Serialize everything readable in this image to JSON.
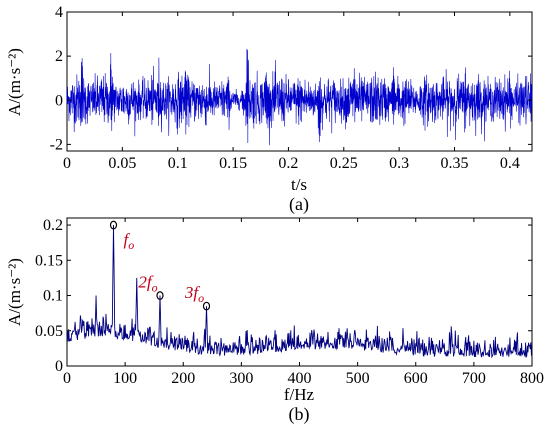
{
  "chart_data": [
    {
      "type": "line",
      "caption": "(a)",
      "xlabel": "t/s",
      "ylabel": "A/(m·s⁻²)",
      "xlim": [
        0,
        0.42
      ],
      "ylim": [
        -2.3,
        4
      ],
      "xticks": [
        "0",
        "0.05",
        "0.1",
        "0.15",
        "0.2",
        "0.25",
        "0.3",
        "0.35",
        "0.4"
      ],
      "xtick_values": [
        0,
        0.05,
        0.1,
        0.15,
        0.2,
        0.25,
        0.3,
        0.35,
        0.4
      ],
      "yticks": [
        "-2",
        "0",
        "2",
        "4"
      ],
      "ytick_values": [
        -2,
        0,
        2,
        4
      ],
      "color": "#0000cc",
      "grid": false,
      "series_description": "vibration signal oscillating roughly between -2.3 and 2.8, largest positive peak about 2.8 near t = 0.163 s",
      "peaks": [
        {
          "x": 0.013,
          "y": 1.9
        },
        {
          "x": 0.04,
          "y": 1.8
        },
        {
          "x": 0.083,
          "y": 1.1
        },
        {
          "x": 0.107,
          "y": 1.5
        },
        {
          "x": 0.163,
          "y": 2.8
        },
        {
          "x": 0.18,
          "y": 1.4
        },
        {
          "x": 0.228,
          "y": -2.2
        },
        {
          "x": 0.26,
          "y": 1.4
        },
        {
          "x": 0.295,
          "y": 1.3
        },
        {
          "x": 0.36,
          "y": 1.3
        },
        {
          "x": 0.4,
          "y": 1.2
        }
      ]
    },
    {
      "type": "line",
      "caption": "(b)",
      "xlabel": "f/Hz",
      "ylabel": "A/(m·s⁻²)",
      "xlim": [
        0,
        800
      ],
      "ylim": [
        0,
        0.21
      ],
      "xticks": [
        "0",
        "100",
        "200",
        "300",
        "400",
        "500",
        "600",
        "700",
        "800"
      ],
      "xtick_values": [
        0,
        100,
        200,
        300,
        400,
        500,
        600,
        700,
        800
      ],
      "yticks": [
        "0",
        "0.05",
        "0.1",
        "0.15",
        "0.2"
      ],
      "ytick_values": [
        0,
        0.05,
        0.1,
        0.15,
        0.2
      ],
      "color": "#000080",
      "grid": false,
      "spectrum_peaks": [
        {
          "x": 50,
          "y": 0.1
        },
        {
          "x": 80,
          "y": 0.2
        },
        {
          "x": 120,
          "y": 0.125
        },
        {
          "x": 160,
          "y": 0.1
        },
        {
          "x": 240,
          "y": 0.085
        },
        {
          "x": 470,
          "y": 0.045
        },
        {
          "x": 530,
          "y": 0.038
        }
      ],
      "markers": [
        {
          "x": 80,
          "y": 0.2
        },
        {
          "x": 160,
          "y": 0.1
        },
        {
          "x": 240,
          "y": 0.085
        }
      ],
      "annotations": [
        {
          "base": "f",
          "sub": "o",
          "x": 80,
          "y": 0.2
        },
        {
          "base": "2f",
          "sub": "o",
          "x": 160,
          "y": 0.1
        },
        {
          "base": "3f",
          "sub": "o",
          "x": 240,
          "y": 0.085
        }
      ],
      "annotation_color": "#c0001a"
    }
  ]
}
